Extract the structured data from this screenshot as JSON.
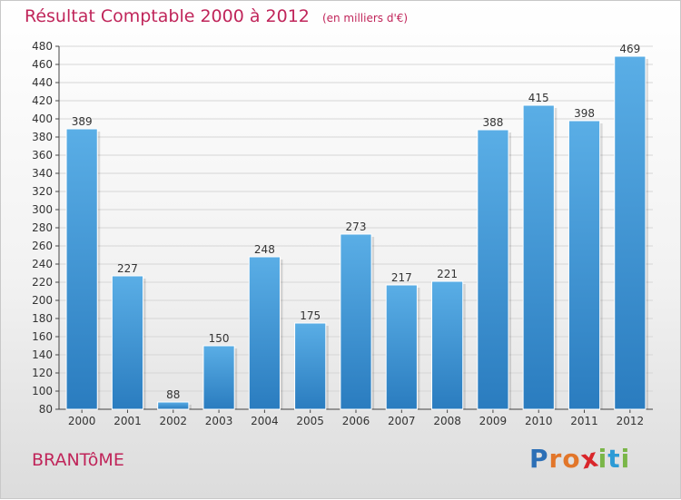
{
  "header": {
    "title": "Résultat Comptable 2000 à 2012",
    "subtitle": "(en milliers d'€)"
  },
  "footer": {
    "city": "BRANTôME",
    "logo_letters": [
      "P",
      "r",
      "o",
      "x",
      "i",
      "t",
      "i"
    ]
  },
  "colors": {
    "title": "#c0255a",
    "bar_top": "#5aaee6",
    "bar_bottom": "#2a7cbf",
    "logo": [
      "#2c6fb6",
      "#e2762a",
      "#e2762a",
      "#d9262b",
      "#7ab648",
      "#2c9bd6",
      "#7ab648"
    ]
  },
  "chart_data": {
    "type": "bar",
    "title": "Résultat Comptable 2000 à 2012",
    "subtitle": "(en milliers d'€)",
    "categories": [
      "2000",
      "2001",
      "2002",
      "2003",
      "2004",
      "2005",
      "2006",
      "2007",
      "2008",
      "2009",
      "2010",
      "2011",
      "2012"
    ],
    "values": [
      389,
      227,
      88,
      150,
      248,
      175,
      273,
      217,
      221,
      388,
      415,
      398,
      469
    ],
    "ylim": [
      80,
      480
    ],
    "yticks": [
      80,
      100,
      120,
      140,
      160,
      180,
      200,
      220,
      240,
      260,
      280,
      300,
      320,
      340,
      360,
      380,
      400,
      420,
      440,
      460,
      480
    ],
    "grid": true,
    "data_labels": true
  }
}
